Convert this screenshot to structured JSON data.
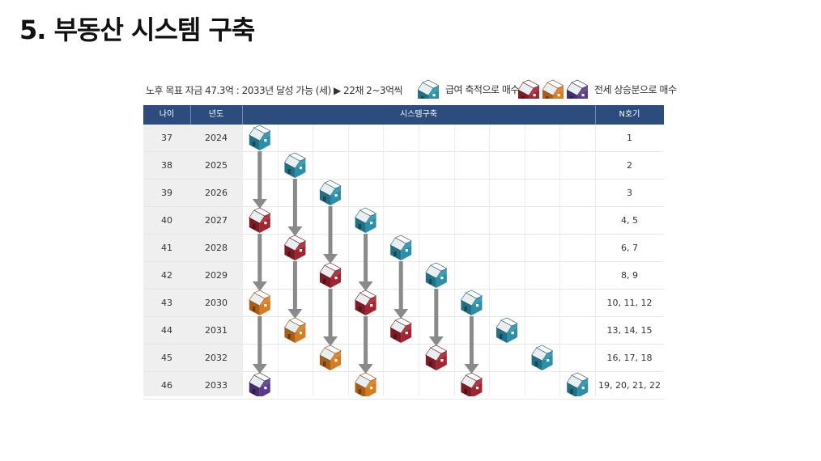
{
  "title": "5. 부동산 시스템 구축",
  "subtitle": "노후 목표 자금 47.3억 : 2033년 달성 가능 (세) ▶ 22채 2~3억씩",
  "legend": {
    "salary": {
      "label": "급여 축적으로 매수",
      "icons": [
        "house-teal"
      ]
    },
    "jeonse": {
      "label": "전세 상승분으로 매수",
      "icons": [
        "house-red",
        "house-orange",
        "house-purple"
      ]
    }
  },
  "colors": {
    "header_bg": "#2c4c7e",
    "teal": "#2a8fab",
    "red": "#a3232e",
    "orange": "#d97a1e",
    "purple": "#5a3a8c",
    "arrow": "#8a8a8a"
  },
  "table": {
    "headers": {
      "age": "나이",
      "year": "년도",
      "system": "시스템구축",
      "count": "N호기"
    },
    "rows": [
      {
        "age": "37",
        "year": "2024",
        "count": "1"
      },
      {
        "age": "38",
        "year": "2025",
        "count": "2"
      },
      {
        "age": "39",
        "year": "2026",
        "count": "3"
      },
      {
        "age": "40",
        "year": "2027",
        "count": "4, 5"
      },
      {
        "age": "41",
        "year": "2028",
        "count": "6, 7"
      },
      {
        "age": "42",
        "year": "2029",
        "count": "8, 9"
      },
      {
        "age": "43",
        "year": "2030",
        "count": "10, 11, 12"
      },
      {
        "age": "44",
        "year": "2031",
        "count": "13, 14, 15"
      },
      {
        "age": "45",
        "year": "2032",
        "count": "16, 17, 18"
      },
      {
        "age": "46",
        "year": "2033",
        "count": "19, 20, 21, 22"
      }
    ]
  },
  "houses": [
    {
      "col": 0,
      "row": 0,
      "color": "teal"
    },
    {
      "col": 1,
      "row": 1,
      "color": "teal"
    },
    {
      "col": 2,
      "row": 2,
      "color": "teal"
    },
    {
      "col": 0,
      "row": 3,
      "color": "red"
    },
    {
      "col": 3,
      "row": 3,
      "color": "teal"
    },
    {
      "col": 1,
      "row": 4,
      "color": "red"
    },
    {
      "col": 4,
      "row": 4,
      "color": "teal"
    },
    {
      "col": 2,
      "row": 5,
      "color": "red"
    },
    {
      "col": 5,
      "row": 5,
      "color": "teal"
    },
    {
      "col": 0,
      "row": 6,
      "color": "orange"
    },
    {
      "col": 3,
      "row": 6,
      "color": "red"
    },
    {
      "col": 6,
      "row": 6,
      "color": "teal"
    },
    {
      "col": 1,
      "row": 7,
      "color": "orange"
    },
    {
      "col": 4,
      "row": 7,
      "color": "red"
    },
    {
      "col": 7,
      "row": 7,
      "color": "teal"
    },
    {
      "col": 2,
      "row": 8,
      "color": "orange"
    },
    {
      "col": 5,
      "row": 8,
      "color": "red"
    },
    {
      "col": 8,
      "row": 8,
      "color": "teal"
    },
    {
      "col": 0,
      "row": 9,
      "color": "purple"
    },
    {
      "col": 3,
      "row": 9,
      "color": "orange"
    },
    {
      "col": 6,
      "row": 9,
      "color": "red"
    },
    {
      "col": 9,
      "row": 9,
      "color": "teal"
    }
  ],
  "arrows": [
    {
      "col": 0,
      "from": 0,
      "to": 3
    },
    {
      "col": 0,
      "from": 3,
      "to": 6
    },
    {
      "col": 0,
      "from": 6,
      "to": 9
    },
    {
      "col": 1,
      "from": 1,
      "to": 4
    },
    {
      "col": 1,
      "from": 4,
      "to": 7
    },
    {
      "col": 2,
      "from": 2,
      "to": 5
    },
    {
      "col": 2,
      "from": 5,
      "to": 8
    },
    {
      "col": 3,
      "from": 3,
      "to": 6
    },
    {
      "col": 3,
      "from": 6,
      "to": 9
    },
    {
      "col": 4,
      "from": 4,
      "to": 7
    },
    {
      "col": 5,
      "from": 5,
      "to": 8
    },
    {
      "col": 6,
      "from": 6,
      "to": 9
    }
  ]
}
